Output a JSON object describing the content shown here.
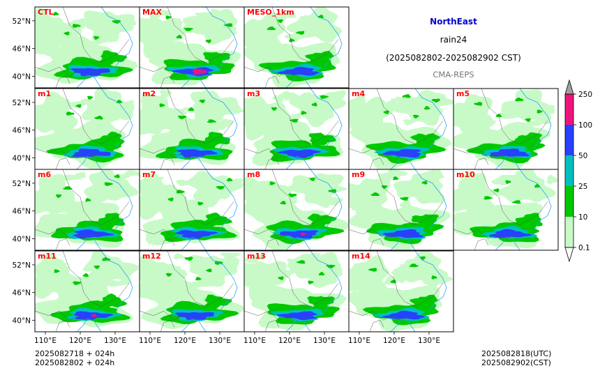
{
  "header": {
    "region": "NorthEast",
    "variable": "rain24",
    "period": "(2025082802-2025082902 CST)",
    "source": "CMA-REPS"
  },
  "footer": {
    "init_utc": "2025082718  +  024h",
    "init_cst": "2025082802  +  024h",
    "valid_utc": "2025082818(UTC)",
    "valid_cst": "2025082902(CST)"
  },
  "colorbar": {
    "levels": [
      0.1,
      10,
      25,
      50,
      100,
      250
    ],
    "tick_labels": [
      "0.1",
      "10",
      "25",
      "50",
      "100",
      "250"
    ],
    "colors": [
      "#c8fac8",
      "#00c800",
      "#00c0c0",
      "#2840ff",
      "#f0147a"
    ],
    "extend_min_color": "#ffffff",
    "extend_max_color": "#a0a0a0"
  },
  "chart_data": {
    "type": "heatmap",
    "title": "rain24",
    "panel_labels": [
      "CTL",
      "MAX",
      "MESO_1km",
      "m1",
      "m2",
      "m3",
      "m4",
      "m5",
      "m6",
      "m7",
      "m8",
      "m9",
      "m10",
      "m11",
      "m12",
      "m13",
      "m14"
    ],
    "panel_label_color": "#ff0000",
    "lat_tick_labels": [
      "52°N",
      "46°N",
      "40°N"
    ],
    "lon_tick_labels": [
      "110°E",
      "120°E",
      "130°E"
    ],
    "lat_ticks": [
      52,
      46,
      40
    ],
    "lon_ticks": [
      110,
      120,
      130
    ],
    "xlim": [
      107,
      137
    ],
    "ylim": [
      37.5,
      55
    ],
    "legend_placement": "right"
  }
}
